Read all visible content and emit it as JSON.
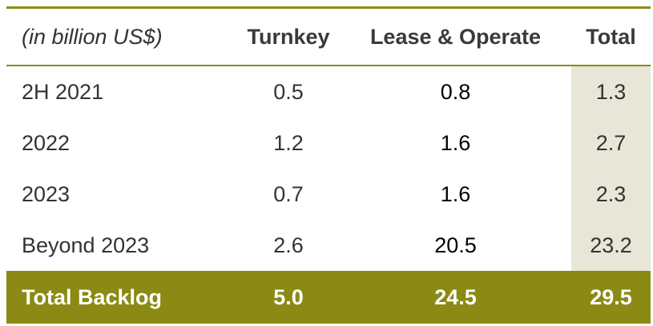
{
  "table": {
    "header": {
      "unit_label": "(in billion US$)",
      "col_turnkey": "Turnkey",
      "col_lease": "Lease & Operate",
      "col_total": "Total"
    },
    "rows": [
      {
        "period": "2H 2021",
        "turnkey": "0.5",
        "lease": "0.8",
        "total": "1.3"
      },
      {
        "period": "2022",
        "turnkey": "1.2",
        "lease": "1.6",
        "total": "2.7"
      },
      {
        "period": "2023",
        "turnkey": "0.7",
        "lease": "1.6",
        "total": "2.3"
      },
      {
        "period": "Beyond 2023",
        "turnkey": "2.6",
        "lease": "20.5",
        "total": "23.2"
      }
    ],
    "footer": {
      "label": "Total Backlog",
      "turnkey": "5.0",
      "lease": "24.5",
      "total": "29.5"
    },
    "colors": {
      "accent": "#8a8a14",
      "total_column_shade": "#e8e6d6"
    }
  }
}
